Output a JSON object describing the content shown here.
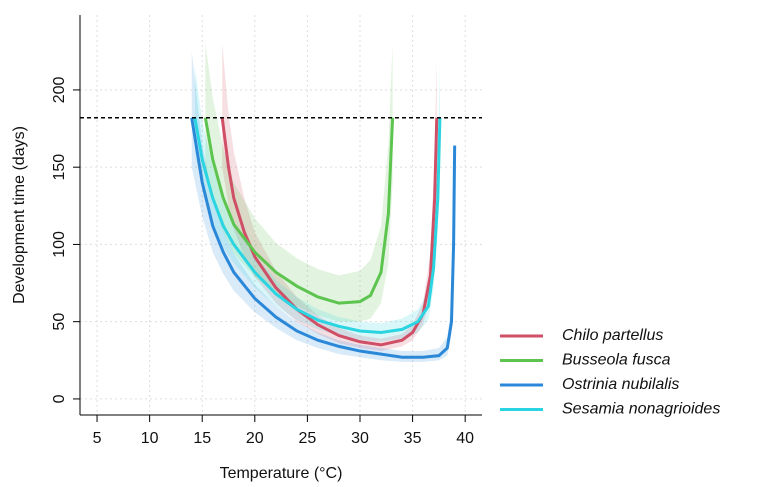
{
  "chart_data": {
    "type": "line",
    "x_label": "Temperature (°C)",
    "y_label": "Development time (days)",
    "xlim": [
      3.38,
      41.6
    ],
    "ylim": [
      -10.4,
      248.5
    ],
    "xticks": [
      5,
      10,
      15,
      20,
      25,
      30,
      35,
      40
    ],
    "yticks": [
      0,
      50,
      100,
      150,
      200
    ],
    "grid": true,
    "hline": 182,
    "legend_position": "bottom-right",
    "series": [
      {
        "name": "Chilo partellus",
        "color": "#cf4f66",
        "x": [
          16.9,
          17.5,
          18,
          19,
          20,
          22,
          24,
          26,
          28,
          30,
          32,
          34,
          35,
          36,
          36.7,
          37.1,
          37.3
        ],
        "values": [
          182,
          150,
          130,
          108,
          92,
          72,
          58,
          48,
          41,
          37,
          35,
          38,
          43,
          55,
          80,
          130,
          182
        ],
        "upper": [
          230,
          185,
          160,
          130,
          108,
          83,
          66,
          54,
          46,
          41,
          39,
          42,
          48,
          62,
          95,
          160,
          220
        ],
        "lower": [
          150,
          125,
          110,
          92,
          79,
          62,
          50,
          42,
          36,
          33,
          31,
          34,
          38,
          48,
          68,
          108,
          150
        ]
      },
      {
        "name": "Busseola fusca",
        "color": "#5cc44f",
        "x": [
          15.3,
          16,
          17,
          18,
          20,
          22,
          24,
          26,
          28,
          30,
          31,
          32,
          32.7,
          33.1
        ],
        "values": [
          182,
          155,
          130,
          113,
          95,
          82,
          73,
          66,
          62,
          63,
          67,
          82,
          120,
          182
        ],
        "upper": [
          230,
          195,
          162,
          140,
          117,
          101,
          91,
          84,
          80,
          83,
          90,
          112,
          165,
          230
        ],
        "lower": [
          148,
          128,
          108,
          94,
          79,
          68,
          60,
          54,
          50,
          50,
          52,
          62,
          88,
          140
        ]
      },
      {
        "name": "Ostrinia nubilalis",
        "color": "#2b88d8",
        "x": [
          14,
          15,
          16,
          17,
          18,
          20,
          22,
          24,
          26,
          28,
          30,
          32,
          34,
          36,
          37.5,
          38.3,
          38.7,
          38.9,
          39
        ],
        "values": [
          182,
          140,
          112,
          95,
          82,
          65,
          53,
          44,
          38,
          34,
          31,
          29,
          27,
          27,
          28,
          33,
          50,
          100,
          164
        ],
        "upper": [
          225,
          165,
          130,
          109,
          94,
          74,
          60,
          50,
          43,
          38,
          35,
          33,
          31,
          31,
          33,
          40,
          62,
          125,
          164
        ],
        "lower": [
          150,
          118,
          95,
          81,
          70,
          56,
          46,
          38,
          33,
          29,
          27,
          25,
          24,
          24,
          25,
          28,
          42,
          82,
          164
        ]
      },
      {
        "name": "Sesamia nonagrioides",
        "color": "#2ad4e0",
        "x": [
          14.3,
          15,
          16,
          17,
          18,
          20,
          22,
          24,
          26,
          28,
          30,
          32,
          34,
          35.5,
          36.5,
          37,
          37.4,
          37.6
        ],
        "values": [
          182,
          155,
          130,
          112,
          100,
          82,
          68,
          58,
          51,
          47,
          44,
          43,
          45,
          50,
          60,
          85,
          130,
          182
        ],
        "upper": [
          215,
          180,
          150,
          128,
          114,
          93,
          77,
          66,
          58,
          53,
          50,
          49,
          52,
          58,
          70,
          100,
          155,
          215
        ],
        "lower": [
          160,
          136,
          114,
          98,
          88,
          72,
          60,
          51,
          45,
          41,
          38,
          37,
          39,
          43,
          51,
          72,
          110,
          155
        ]
      }
    ]
  }
}
